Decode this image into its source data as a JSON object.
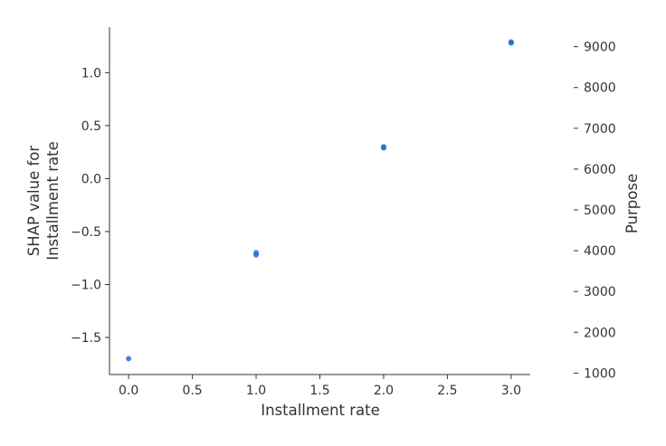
{
  "chart_data": {
    "type": "scatter",
    "xlabel": "Installment rate",
    "ylabel_lines": [
      "SHAP value for",
      "Installment rate"
    ],
    "color_axis_label": "Purpose",
    "xlim": [
      -0.15,
      3.15
    ],
    "ylim": [
      -1.85,
      1.43
    ],
    "x_ticks": [
      0.0,
      0.5,
      1.0,
      1.5,
      2.0,
      2.5,
      3.0
    ],
    "x_tick_labels": [
      "0.0",
      "0.5",
      "1.0",
      "1.5",
      "2.0",
      "2.5",
      "3.0"
    ],
    "y_ticks": [
      -1.5,
      -1.0,
      -0.5,
      0.0,
      0.5,
      1.0
    ],
    "y_tick_labels": [
      "−1.5",
      "−1.0",
      "−0.5",
      "0.0",
      "0.5",
      "1.0"
    ],
    "color_ticks": [
      1000,
      2000,
      3000,
      4000,
      5000,
      6000,
      7000,
      8000,
      9000
    ],
    "color_tick_labels": [
      "1000",
      "2000",
      "3000",
      "4000",
      "5000",
      "6000",
      "7000",
      "8000",
      "9000"
    ],
    "color_range": [
      720,
      9480
    ],
    "grid": false,
    "point_color": "#1e6fd9",
    "points": [
      {
        "x": 0.0,
        "y": -1.7
      },
      {
        "x": 1.0,
        "y": -0.7
      },
      {
        "x": 1.0,
        "y": -0.72
      },
      {
        "x": 2.0,
        "y": 0.29
      },
      {
        "x": 2.0,
        "y": 0.3
      },
      {
        "x": 3.0,
        "y": 1.29
      },
      {
        "x": 3.0,
        "y": 1.28
      }
    ]
  }
}
